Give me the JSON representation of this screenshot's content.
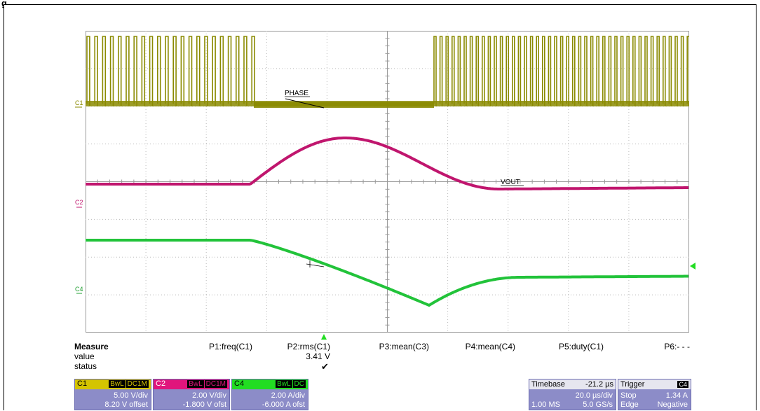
{
  "figure": {
    "label": "g"
  },
  "traces": {
    "phase_label": "PHASE",
    "vout_label": "VOUT",
    "markers": {
      "c1": "C1",
      "c2": "C2",
      "c4": "C4"
    },
    "colors": {
      "c1": "#8a8a00",
      "c2": "#c0166e",
      "c4": "#22c33a",
      "grid": "#888888"
    }
  },
  "measure": {
    "title": "Measure",
    "row_value": "value",
    "row_status": "status",
    "columns": [
      {
        "param": "P1:freq(C1)",
        "value": "",
        "status": ""
      },
      {
        "param": "P2:rms(C1)",
        "value": "3.41 V",
        "status": "✔"
      },
      {
        "param": "P3:mean(C3)",
        "value": "",
        "status": ""
      },
      {
        "param": "P4:mean(C4)",
        "value": "",
        "status": ""
      },
      {
        "param": "P5:duty(C1)",
        "value": "",
        "status": ""
      },
      {
        "param": "P6:- - -",
        "value": "",
        "status": ""
      }
    ]
  },
  "channels": [
    {
      "name": "C1",
      "tag1": "BwL",
      "tag2": "DC1M",
      "scale": "5.00 V/div",
      "offset": "8.20 V offset",
      "color": "#d4c400"
    },
    {
      "name": "C2",
      "tag1": "BwL",
      "tag2": "DC1M",
      "scale": "2.00 V/div",
      "offset": "-1.800 V ofst",
      "color": "#e0157c"
    },
    {
      "name": "C4",
      "tag1": "BwL",
      "tag2": "DC",
      "scale": "2.00 A/div",
      "offset": "-6.000 A ofst",
      "color": "#22dd22"
    }
  ],
  "timebase": {
    "label": "Timebase",
    "delay": "-21.2 µs",
    "scale": "20.0 µs/div",
    "memory": "1.00 MS",
    "rate": "5.0 GS/s"
  },
  "trigger": {
    "label": "Trigger",
    "source": "C4",
    "mode": "Stop",
    "level": "1.34 A",
    "type": "Edge",
    "slope": "Negative"
  }
}
